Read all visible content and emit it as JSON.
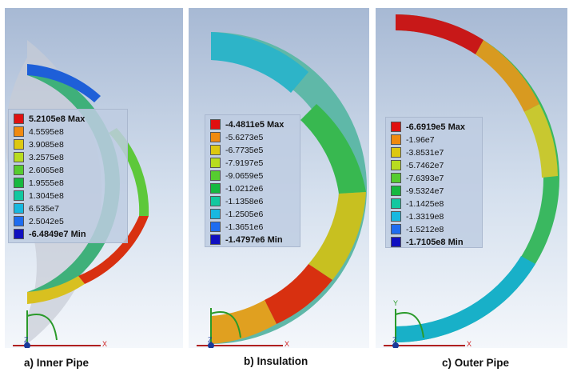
{
  "panels": [
    {
      "id": "inner-pipe",
      "caption": "a) Inner Pipe",
      "legend": [
        "5.2105e8 Max",
        "4.5595e8",
        "3.9085e8",
        "3.2575e8",
        "2.6065e8",
        "1.9555e8",
        "1.3045e8",
        "6.535e7",
        "2.5042e5",
        "-6.4849e7 Min"
      ]
    },
    {
      "id": "insulation",
      "caption": "b) Insulation",
      "legend": [
        "-4.4811e5 Max",
        "-5.6273e5",
        "-6.7735e5",
        "-7.9197e5",
        "-9.0659e5",
        "-1.0212e6",
        "-1.1358e6",
        "-1.2505e6",
        "-1.3651e6",
        "-1.4797e6 Min"
      ]
    },
    {
      "id": "outer-pipe",
      "caption": "c) Outer Pipe",
      "legend": [
        "-6.6919e5 Max",
        "-1.96e7",
        "-3.8531e7",
        "-5.7462e7",
        "-7.6393e7",
        "-9.5324e7",
        "-1.1425e8",
        "-1.3319e8",
        "-1.5212e8",
        "-1.7105e8 Min"
      ]
    }
  ],
  "legend_colors": [
    "#e01010",
    "#f08a10",
    "#ddc810",
    "#b8dc20",
    "#56cc30",
    "#16b840",
    "#12c8a0",
    "#18b8e0",
    "#1e6cf0",
    "#1010c0"
  ],
  "axes": {
    "x": "X",
    "y": "Y",
    "z": "Z"
  }
}
